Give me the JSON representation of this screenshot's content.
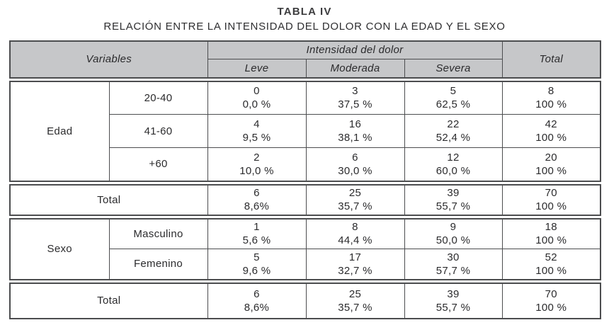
{
  "title": "TABLA IV",
  "subtitle": "RELACIÓN ENTRE LA INTENSIDAD DEL DOLOR CON LA EDAD Y EL SEXO",
  "colors": {
    "header_bg": "#c6c7c9",
    "border": "#4c4d4f",
    "text": "#2b2b2d"
  },
  "header": {
    "variables": "Variables",
    "intensidad": "Intensidad del dolor",
    "total": "Total",
    "leve": "Leve",
    "moderada": "Moderada",
    "severa": "Severa"
  },
  "sections": {
    "edad": {
      "label": "Edad",
      "rows": [
        {
          "label": "20-40",
          "cells": [
            [
              "0",
              "0,0 %"
            ],
            [
              "3",
              "37,5 %"
            ],
            [
              "5",
              "62,5 %"
            ],
            [
              "8",
              "100 %"
            ]
          ]
        },
        {
          "label": "41-60",
          "cells": [
            [
              "4",
              "9,5 %"
            ],
            [
              "16",
              "38,1 %"
            ],
            [
              "22",
              "52,4 %"
            ],
            [
              "42",
              "100 %"
            ]
          ]
        },
        {
          "label": "+60",
          "cells": [
            [
              "2",
              "10,0 %"
            ],
            [
              "6",
              "30,0 %"
            ],
            [
              "12",
              "60,0 %"
            ],
            [
              "20",
              "100 %"
            ]
          ]
        }
      ]
    },
    "total_edad": {
      "label": "Total",
      "cells": [
        [
          "6",
          "8,6%"
        ],
        [
          "25",
          "35,7 %"
        ],
        [
          "39",
          "55,7 %"
        ],
        [
          "70",
          "100 %"
        ]
      ]
    },
    "sexo": {
      "label": "Sexo",
      "rows": [
        {
          "label": "Masculino",
          "cells": [
            [
              "1",
              "5,6 %"
            ],
            [
              "8",
              "44,4 %"
            ],
            [
              "9",
              "50,0 %"
            ],
            [
              "18",
              "100 %"
            ]
          ]
        },
        {
          "label": "Femenino",
          "cells": [
            [
              "5",
              "9,6 %"
            ],
            [
              "17",
              "32,7 %"
            ],
            [
              "30",
              "57,7 %"
            ],
            [
              "52",
              "100 %"
            ]
          ]
        }
      ]
    },
    "total_sexo": {
      "label": "Total",
      "cells": [
        [
          "6",
          "8,6%"
        ],
        [
          "25",
          "35,7 %"
        ],
        [
          "39",
          "55,7 %"
        ],
        [
          "70",
          "100 %"
        ]
      ]
    }
  }
}
